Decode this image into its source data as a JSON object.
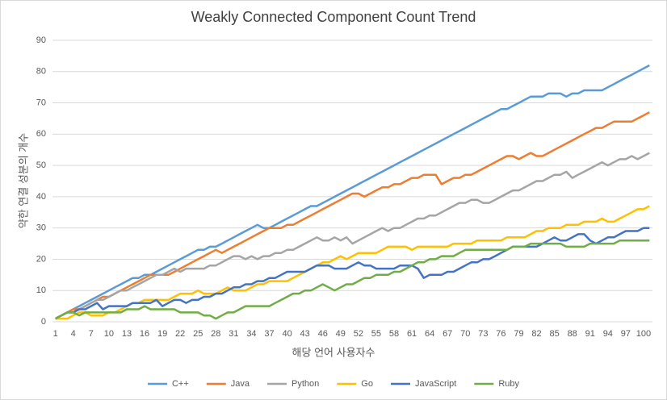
{
  "chart_data": {
    "type": "line",
    "title": "Weakly Connected Component Count Trend",
    "x_label": "해당 언어 사용자수",
    "y_label": "약한 연결 성분의 개수",
    "categories": [
      "1",
      null,
      null,
      "4",
      null,
      null,
      "7",
      null,
      null,
      "10",
      null,
      null,
      "13",
      null,
      null,
      "16",
      null,
      null,
      "19",
      null,
      null,
      "22",
      null,
      null,
      "25",
      null,
      null,
      "28",
      null,
      null,
      "31",
      null,
      null,
      "34",
      null,
      null,
      "37",
      null,
      null,
      "40",
      null,
      null,
      "43",
      null,
      null,
      "46",
      null,
      null,
      "49",
      null,
      null,
      "52",
      null,
      null,
      "55",
      null,
      null,
      "58",
      null,
      null,
      "61",
      null,
      null,
      "64",
      null,
      null,
      "67",
      null,
      null,
      "70",
      null,
      null,
      "73",
      null,
      null,
      "76",
      null,
      null,
      "79",
      null,
      null,
      "82",
      null,
      null,
      "85",
      null,
      null,
      "88",
      null,
      null,
      "91",
      null,
      null,
      "94",
      null,
      null,
      "97",
      null,
      null,
      "100",
      null
    ],
    "ylim": [
      0,
      90
    ],
    "yticks": [
      0,
      10,
      20,
      30,
      40,
      50,
      60,
      70,
      80,
      90
    ],
    "grid": true,
    "legend": "bottom",
    "series": [
      {
        "name": "C++",
        "color": "#5b9bd5",
        "values": [
          1,
          2,
          3,
          4,
          5,
          6,
          7,
          8,
          9,
          10,
          11,
          12,
          13,
          14,
          14,
          15,
          15,
          16,
          17,
          18,
          19,
          20,
          21,
          22,
          23,
          23,
          24,
          24,
          25,
          26,
          27,
          28,
          29,
          30,
          31,
          30,
          30,
          31,
          32,
          33,
          34,
          35,
          36,
          37,
          37,
          38,
          39,
          40,
          41,
          42,
          43,
          44,
          45,
          46,
          47,
          48,
          49,
          50,
          51,
          52,
          53,
          54,
          55,
          56,
          57,
          58,
          59,
          60,
          61,
          62,
          63,
          64,
          65,
          66,
          67,
          68,
          68,
          69,
          70,
          71,
          72,
          72,
          72,
          73,
          73,
          73,
          72,
          73,
          73,
          74,
          74,
          74,
          74,
          75,
          76,
          77,
          78,
          79,
          80,
          81,
          82
        ]
      },
      {
        "name": "Java",
        "color": "#ed7d31",
        "values": [
          1,
          2,
          3,
          4,
          4,
          5,
          6,
          7,
          8,
          8,
          9,
          10,
          11,
          12,
          13,
          14,
          15,
          15,
          15,
          15,
          16,
          17,
          18,
          19,
          20,
          21,
          22,
          23,
          22,
          23,
          24,
          25,
          26,
          27,
          28,
          29,
          30,
          30,
          30,
          31,
          31,
          32,
          33,
          34,
          35,
          36,
          37,
          38,
          39,
          40,
          41,
          41,
          40,
          41,
          42,
          43,
          43,
          44,
          44,
          45,
          46,
          46,
          47,
          47,
          47,
          44,
          45,
          46,
          46,
          47,
          47,
          48,
          49,
          50,
          51,
          52,
          53,
          53,
          52,
          53,
          54,
          53,
          53,
          54,
          55,
          56,
          57,
          58,
          59,
          60,
          61,
          62,
          62,
          63,
          64,
          64,
          64,
          64,
          65,
          66,
          67
        ]
      },
      {
        "name": "Python",
        "color": "#a5a5a5",
        "values": [
          1,
          2,
          3,
          3,
          4,
          5,
          6,
          7,
          7,
          8,
          9,
          10,
          10,
          11,
          12,
          13,
          14,
          15,
          15,
          16,
          17,
          16,
          17,
          17,
          17,
          17,
          18,
          18,
          19,
          20,
          21,
          21,
          20,
          21,
          20,
          21,
          21,
          22,
          22,
          23,
          23,
          24,
          25,
          26,
          27,
          26,
          26,
          27,
          26,
          27,
          25,
          26,
          27,
          28,
          29,
          30,
          29,
          30,
          30,
          31,
          32,
          33,
          33,
          34,
          34,
          35,
          36,
          37,
          38,
          38,
          39,
          39,
          38,
          38,
          39,
          40,
          41,
          42,
          42,
          43,
          44,
          45,
          45,
          46,
          47,
          47,
          48,
          46,
          47,
          48,
          49,
          50,
          51,
          50,
          51,
          52,
          52,
          53,
          52,
          53,
          54
        ]
      },
      {
        "name": "Go",
        "color": "#ffc000",
        "values": [
          1,
          1,
          1,
          2,
          3,
          3,
          2,
          2,
          2,
          3,
          3,
          4,
          5,
          6,
          6,
          7,
          7,
          7,
          7,
          7,
          8,
          9,
          9,
          9,
          10,
          9,
          9,
          9,
          10,
          11,
          10,
          10,
          10,
          11,
          12,
          12,
          13,
          13,
          13,
          13,
          14,
          15,
          16,
          17,
          18,
          19,
          19,
          20,
          21,
          20,
          21,
          22,
          22,
          22,
          22,
          23,
          24,
          24,
          24,
          24,
          23,
          24,
          24,
          24,
          24,
          24,
          24,
          25,
          25,
          25,
          25,
          26,
          26,
          26,
          26,
          26,
          27,
          27,
          27,
          27,
          28,
          29,
          29,
          30,
          30,
          30,
          31,
          31,
          31,
          32,
          32,
          32,
          33,
          32,
          32,
          33,
          34,
          35,
          36,
          36,
          37
        ]
      },
      {
        "name": "JavaScript",
        "color": "#4472c4",
        "values": [
          1,
          2,
          3,
          3,
          4,
          4,
          5,
          6,
          4,
          5,
          5,
          5,
          5,
          6,
          6,
          6,
          6,
          7,
          5,
          6,
          7,
          7,
          6,
          7,
          7,
          8,
          8,
          9,
          9,
          10,
          11,
          11,
          12,
          12,
          13,
          13,
          14,
          14,
          15,
          16,
          16,
          16,
          16,
          17,
          18,
          18,
          18,
          17,
          17,
          17,
          18,
          19,
          18,
          18,
          17,
          17,
          17,
          17,
          18,
          18,
          18,
          17,
          14,
          15,
          15,
          15,
          16,
          16,
          17,
          18,
          19,
          19,
          20,
          20,
          21,
          22,
          23,
          24,
          24,
          24,
          24,
          24,
          25,
          26,
          27,
          26,
          26,
          27,
          28,
          28,
          26,
          25,
          26,
          27,
          27,
          28,
          29,
          29,
          29,
          30,
          30
        ]
      },
      {
        "name": "Ruby",
        "color": "#70ad47",
        "values": [
          1,
          2,
          3,
          3,
          2,
          3,
          3,
          3,
          3,
          3,
          3,
          3,
          4,
          4,
          4,
          5,
          4,
          4,
          4,
          4,
          4,
          3,
          3,
          3,
          3,
          2,
          2,
          1,
          2,
          3,
          3,
          4,
          5,
          5,
          5,
          5,
          5,
          6,
          7,
          8,
          9,
          9,
          10,
          10,
          11,
          12,
          11,
          10,
          11,
          12,
          12,
          13,
          14,
          14,
          15,
          15,
          15,
          16,
          16,
          17,
          18,
          19,
          19,
          20,
          20,
          21,
          21,
          21,
          22,
          23,
          23,
          23,
          23,
          23,
          23,
          23,
          23,
          24,
          24,
          24,
          25,
          25,
          25,
          25,
          25,
          25,
          24,
          24,
          24,
          24,
          25,
          25,
          25,
          25,
          25,
          26,
          26,
          26,
          26,
          26,
          26
        ]
      }
    ]
  }
}
